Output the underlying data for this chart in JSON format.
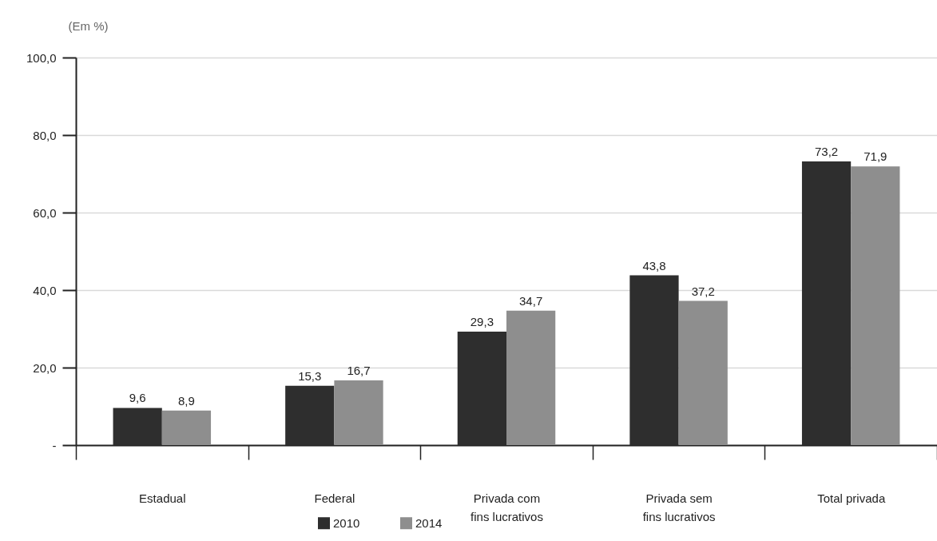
{
  "chart_data": {
    "type": "bar",
    "ylabel": "(Em %)",
    "categories": [
      "Estadual",
      "Federal",
      "Privada com\nfins lucrativos",
      "Privada sem\nfins lucrativos",
      "Total privada"
    ],
    "series": [
      {
        "name": "2010",
        "color": "#2e2e2e",
        "values": [
          9.6,
          15.3,
          29.3,
          43.8,
          73.2
        ],
        "value_labels": [
          "9,6",
          "15,3",
          "29,3",
          "43,8",
          "73,2"
        ]
      },
      {
        "name": "2014",
        "color": "#8e8e8e",
        "values": [
          8.9,
          16.7,
          34.7,
          37.2,
          71.9
        ],
        "value_labels": [
          "8,9",
          "16,7",
          "34,7",
          "37,2",
          "71,9"
        ]
      }
    ],
    "ylim": [
      0,
      100
    ],
    "yticks": [
      {
        "value": 0,
        "label": "-"
      },
      {
        "value": 20,
        "label": "20,0"
      },
      {
        "value": 40,
        "label": "40,0"
      },
      {
        "value": 60,
        "label": "60,0"
      },
      {
        "value": 80,
        "label": "80,0"
      },
      {
        "value": 100,
        "label": "100,0"
      }
    ],
    "grid": "y",
    "legend": "bottom"
  }
}
